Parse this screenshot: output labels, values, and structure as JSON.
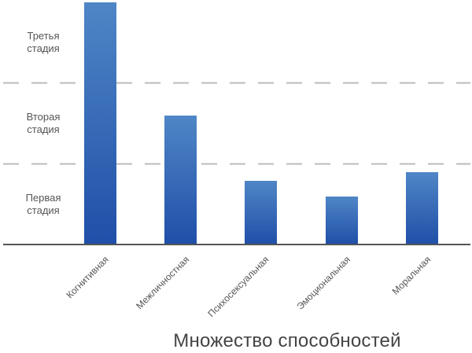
{
  "chart_data": {
    "type": "bar",
    "title": "",
    "xlabel": "Множество способностей",
    "ylabel": "",
    "categories": [
      "Когнитивная",
      "Межличностная",
      "Психосексуальная",
      "Эмоциональная",
      "Моральная"
    ],
    "values": [
      3.0,
      1.6,
      0.8,
      0.6,
      0.9
    ],
    "ylim": [
      0,
      3
    ],
    "yticks": [
      {
        "label_line1": "Первая",
        "label_line2": "стадия",
        "range": [
          0,
          1
        ]
      },
      {
        "label_line1": "Вторая",
        "label_line2": "стадия",
        "range": [
          1,
          2
        ]
      },
      {
        "label_line1": "Третья",
        "label_line2": "стадия",
        "range": [
          2,
          3
        ]
      }
    ],
    "grid": {
      "horizontal_dashed_at": [
        1,
        2
      ]
    },
    "legend": null,
    "colors": {
      "bar_top": "#4F86C6",
      "bar_bottom": "#1F4FA8",
      "grid": "#BBBBBB",
      "axis": "#555555",
      "text": "#555555"
    }
  },
  "axis": {
    "x_title": "Множество способностей",
    "y_labels": [
      {
        "line1": "Третья",
        "line2": "стадия"
      },
      {
        "line1": "Вторая",
        "line2": "стадия"
      },
      {
        "line1": "Первая",
        "line2": "стадия"
      }
    ]
  }
}
